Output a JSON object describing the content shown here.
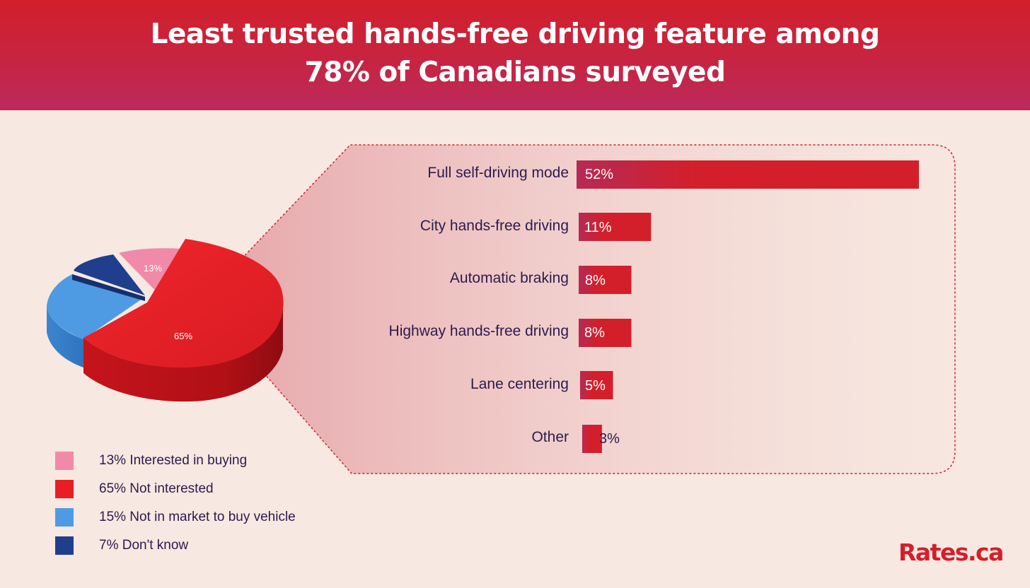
{
  "header": {
    "title_line1": "Least trusted hands-free driving feature among",
    "title_line2": "78% of Canadians surveyed",
    "gradient_colors": [
      "#d21f2b",
      "#bb2a5e"
    ]
  },
  "background_color": "#f7e8e1",
  "chart_data": [
    {
      "type": "pie",
      "style": "3d-exploded",
      "slices": [
        {
          "label": "Interested in buying",
          "value": 13,
          "color": "#f08aa8",
          "data_label": "13%"
        },
        {
          "label": "Not interested",
          "value": 65,
          "color": "#ea1c24",
          "data_label": "65%"
        },
        {
          "label": "Not in market to buy vehicle",
          "value": 15,
          "color": "#4f9be3",
          "data_label": ""
        },
        {
          "label": "Don't know",
          "value": 7,
          "color": "#1f3f8d",
          "data_label": ""
        }
      ],
      "legend": [
        {
          "text": "13% Interested in buying",
          "color": "#f08aa8",
          "icon": "pink-square-icon"
        },
        {
          "text": "65% Not interested",
          "color": "#ea1c24",
          "icon": "red-square-icon"
        },
        {
          "text": "15% Not in market to buy vehicle",
          "color": "#4f9be3",
          "icon": "light-blue-square-icon"
        },
        {
          "text": "7% Don't know",
          "color": "#1f3f8d",
          "icon": "dark-blue-square-icon"
        }
      ],
      "legend_placement": "bottom-left"
    },
    {
      "type": "bar",
      "orientation": "horizontal",
      "categories": [
        "Full self-driving mode",
        "City hands-free driving",
        "Automatic braking",
        "Highway hands-free driving",
        "Lane centering",
        "Other"
      ],
      "values": [
        52,
        11,
        8,
        8,
        5,
        3
      ],
      "value_labels": [
        "52%",
        "11%",
        "8%",
        "8%",
        "5%",
        "3%"
      ],
      "bar_color": "#d31f2a",
      "bar_color_light": "#b62a55",
      "xlim": [
        0,
        52
      ],
      "grid": false
    }
  ],
  "brand": {
    "logo_text": "Rates.ca",
    "color": "#d31f2a"
  }
}
